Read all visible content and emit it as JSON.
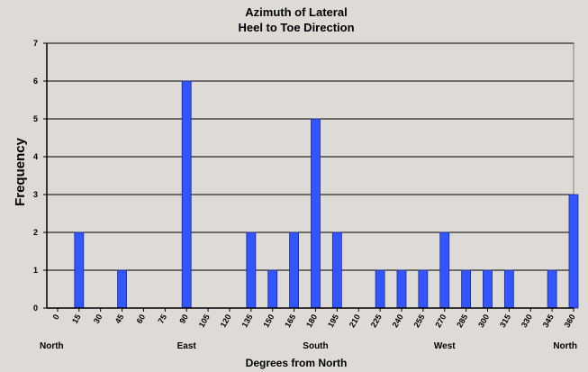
{
  "chart_data": {
    "type": "bar",
    "title": [
      "Azimuth of Lateral",
      "Heel to Toe Direction"
    ],
    "xlabel": "Degrees from North",
    "ylabel": "Frequency",
    "ylim": [
      0,
      7
    ],
    "yticks": [
      0,
      1,
      2,
      3,
      4,
      5,
      6,
      7
    ],
    "grid": true,
    "legend": "none",
    "categories": [
      "0",
      "15",
      "30",
      "45",
      "60",
      "75",
      "90",
      "105",
      "120",
      "135",
      "150",
      "165",
      "180",
      "195",
      "210",
      "225",
      "240",
      "255",
      "270",
      "285",
      "300",
      "315",
      "330",
      "345",
      "360"
    ],
    "values": [
      0,
      2,
      0,
      1,
      0,
      0,
      6,
      0,
      0,
      2,
      1,
      2,
      5,
      2,
      0,
      1,
      1,
      1,
      2,
      1,
      1,
      1,
      0,
      1,
      3
    ],
    "bar_color": "#3355ff",
    "compass": [
      {
        "label": "North",
        "at": "0"
      },
      {
        "label": "East",
        "at": "90"
      },
      {
        "label": "South",
        "at": "180"
      },
      {
        "label": "West",
        "at": "270"
      },
      {
        "label": "North",
        "at": "360"
      }
    ]
  }
}
